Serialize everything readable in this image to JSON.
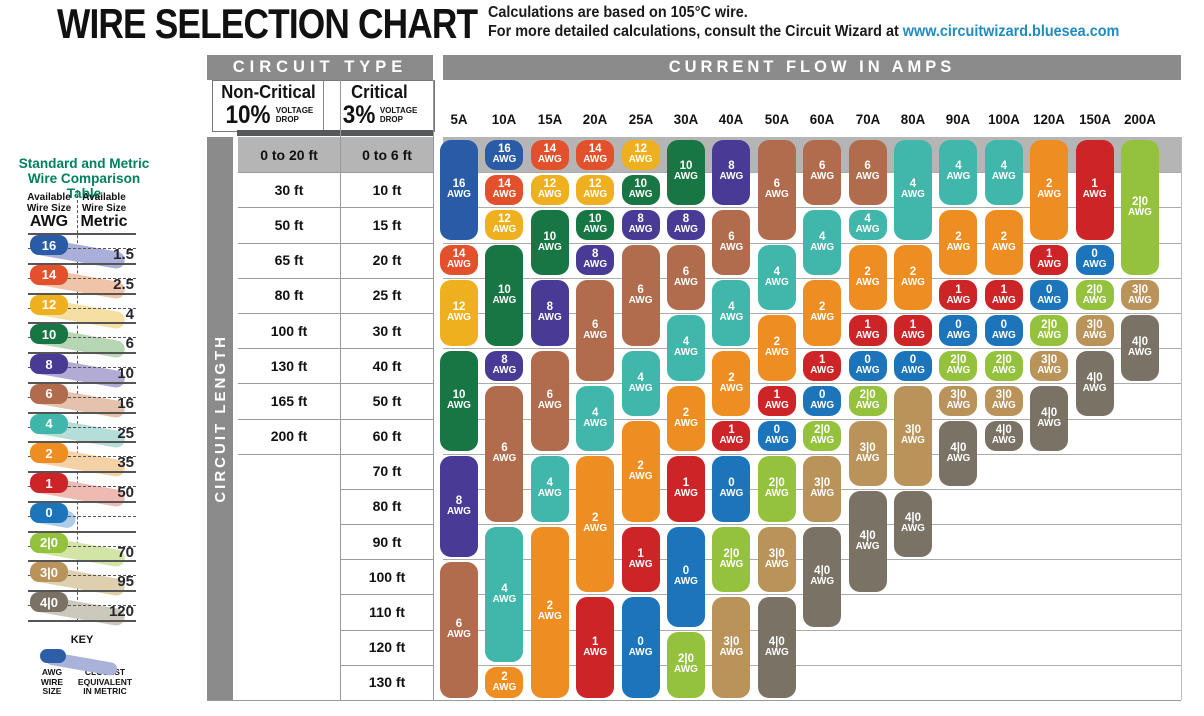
{
  "header": {
    "title": "WIRE SELECTION CHART",
    "note1": "Calculations are based on 105°C wire.",
    "note2": "For more detailed calculations, consult the Circuit Wizard at ",
    "link": "www.circuitwizard.bluesea.com"
  },
  "table": {
    "circuit_type": "CIRCUIT TYPE",
    "current_flow": "CURRENT FLOW IN AMPS",
    "non_critical": "Non-Critical",
    "non_critical_pct": "10%",
    "critical": "Critical",
    "critical_pct": "3%",
    "voltage_l1": "VOLTAGE",
    "voltage_l2": "DROP",
    "circuit_length": "CIRCUIT LENGTH"
  },
  "sidebar": {
    "title_l1": "Standard and Metric",
    "title_l2": "Wire Comparison Table",
    "awg_header_l1": "Available",
    "awg_header_l2": "Wire Size",
    "awg_header_l3": "AWG",
    "metric_header_l1": "Available",
    "metric_header_l2": "Wire Size",
    "metric_header_l3": "Metric",
    "rows": [
      {
        "awg": "16",
        "metric": "1.5",
        "color": "#2a5ba6",
        "tint": "#a9afd9"
      },
      {
        "awg": "14",
        "metric": "2.5",
        "color": "#e2512c",
        "tint": "#f0c4a9"
      },
      {
        "awg": "12",
        "metric": "4",
        "color": "#eeb01f",
        "tint": "#f6dfa3"
      },
      {
        "awg": "10",
        "metric": "6",
        "color": "#177643",
        "tint": "#b7d6b3"
      },
      {
        "awg": "8",
        "metric": "10",
        "color": "#483a95",
        "tint": "#b2abd4"
      },
      {
        "awg": "6",
        "metric": "16",
        "color": "#b06c4c",
        "tint": "#e5c2ad"
      },
      {
        "awg": "4",
        "metric": "25",
        "color": "#41b6aa",
        "tint": "#b4ded7"
      },
      {
        "awg": "2",
        "metric": "35",
        "color": "#ee8d22",
        "tint": "#f5d2a5"
      },
      {
        "awg": "1",
        "metric": "50",
        "color": "#cd2428",
        "tint": "#eebab2"
      },
      {
        "awg": "0",
        "metric": "",
        "color": "#1c74ba",
        "tint": "#aecbe8"
      },
      {
        "awg": "2|0",
        "metric": "70",
        "color": "#94c23c",
        "tint": "#d2e5a7"
      },
      {
        "awg": "3|0",
        "metric": "95",
        "color": "#b9935a",
        "tint": "#ded0ae"
      },
      {
        "awg": "4|0",
        "metric": "120",
        "color": "#7a7264",
        "tint": "#cdc8bc"
      }
    ],
    "key": {
      "label": "KEY",
      "left_l1": "AWG",
      "left_l2": "WIRE",
      "left_l3": "SIZE",
      "right_l1": "CLOSEST",
      "right_l2": "EQUIVALENT",
      "right_l3": "IN METRIC"
    }
  },
  "chart_data": {
    "type": "table",
    "title": "WIRE SELECTION CHART",
    "awg_suffix": "AWG",
    "amps": [
      "5A",
      "10A",
      "15A",
      "20A",
      "25A",
      "30A",
      "40A",
      "50A",
      "60A",
      "70A",
      "80A",
      "90A",
      "100A",
      "120A",
      "150A",
      "200A"
    ],
    "length_rows": [
      {
        "non_critical_10pct": "0 to 20 ft",
        "critical_3pct": "0 to 6 ft"
      },
      {
        "non_critical_10pct": "30 ft",
        "critical_3pct": "10 ft"
      },
      {
        "non_critical_10pct": "50 ft",
        "critical_3pct": "15 ft"
      },
      {
        "non_critical_10pct": "65 ft",
        "critical_3pct": "20 ft"
      },
      {
        "non_critical_10pct": "80 ft",
        "critical_3pct": "25 ft"
      },
      {
        "non_critical_10pct": "100 ft",
        "critical_3pct": "30 ft"
      },
      {
        "non_critical_10pct": "130 ft",
        "critical_3pct": "40 ft"
      },
      {
        "non_critical_10pct": "165 ft",
        "critical_3pct": "50 ft"
      },
      {
        "non_critical_10pct": "200 ft",
        "critical_3pct": "60 ft"
      },
      {
        "non_critical_10pct": "",
        "critical_3pct": "70 ft"
      },
      {
        "non_critical_10pct": "",
        "critical_3pct": "80 ft"
      },
      {
        "non_critical_10pct": "",
        "critical_3pct": "90 ft"
      },
      {
        "non_critical_10pct": "",
        "critical_3pct": "100 ft"
      },
      {
        "non_critical_10pct": "",
        "critical_3pct": "110 ft"
      },
      {
        "non_critical_10pct": "",
        "critical_3pct": "120 ft"
      },
      {
        "non_critical_10pct": "",
        "critical_3pct": "130 ft"
      }
    ],
    "wire_colors": {
      "16": "#2a5ba6",
      "14": "#e2512c",
      "12": "#eeb01f",
      "10": "#177643",
      "8": "#483a95",
      "6": "#b06c4c",
      "4": "#41b6aa",
      "2": "#ee8d22",
      "1": "#cd2428",
      "0": "#1c74ba",
      "2|0": "#94c23c",
      "3|0": "#b9935a",
      "4|0": "#7a7264"
    },
    "columns": [
      {
        "amp": "5A",
        "segments": [
          {
            "awg": "16",
            "from": 1,
            "to": 3
          },
          {
            "awg": "14",
            "from": 4,
            "to": 4
          },
          {
            "awg": "12",
            "from": 5,
            "to": 6
          },
          {
            "awg": "10",
            "from": 7,
            "to": 9
          },
          {
            "awg": "8",
            "from": 10,
            "to": 12
          },
          {
            "awg": "6",
            "from": 13,
            "to": 16
          }
        ]
      },
      {
        "amp": "10A",
        "segments": [
          {
            "awg": "16",
            "from": 1,
            "to": 1
          },
          {
            "awg": "14",
            "from": 2,
            "to": 2
          },
          {
            "awg": "12",
            "from": 3,
            "to": 3
          },
          {
            "awg": "10",
            "from": 4,
            "to": 6
          },
          {
            "awg": "8",
            "from": 7,
            "to": 7
          },
          {
            "awg": "6",
            "from": 8,
            "to": 11
          },
          {
            "awg": "4",
            "from": 12,
            "to": 15
          },
          {
            "awg": "2",
            "from": 16,
            "to": 16
          }
        ]
      },
      {
        "amp": "15A",
        "segments": [
          {
            "awg": "14",
            "from": 1,
            "to": 1
          },
          {
            "awg": "12",
            "from": 2,
            "to": 2
          },
          {
            "awg": "10",
            "from": 3,
            "to": 4
          },
          {
            "awg": "8",
            "from": 5,
            "to": 6
          },
          {
            "awg": "6",
            "from": 7,
            "to": 9
          },
          {
            "awg": "4",
            "from": 10,
            "to": 11
          },
          {
            "awg": "2",
            "from": 12,
            "to": 16
          }
        ]
      },
      {
        "amp": "20A",
        "segments": [
          {
            "awg": "14",
            "from": 1,
            "to": 1
          },
          {
            "awg": "12",
            "from": 2,
            "to": 2
          },
          {
            "awg": "10",
            "from": 3,
            "to": 3
          },
          {
            "awg": "8",
            "from": 4,
            "to": 4
          },
          {
            "awg": "6",
            "from": 5,
            "to": 7
          },
          {
            "awg": "4",
            "from": 8,
            "to": 9
          },
          {
            "awg": "2",
            "from": 10,
            "to": 13
          },
          {
            "awg": "1",
            "from": 14,
            "to": 16
          }
        ]
      },
      {
        "amp": "25A",
        "segments": [
          {
            "awg": "12",
            "from": 1,
            "to": 1
          },
          {
            "awg": "10",
            "from": 2,
            "to": 2
          },
          {
            "awg": "8",
            "from": 3,
            "to": 3
          },
          {
            "awg": "6",
            "from": 4,
            "to": 6
          },
          {
            "awg": "4",
            "from": 7,
            "to": 8
          },
          {
            "awg": "2",
            "from": 9,
            "to": 11
          },
          {
            "awg": "1",
            "from": 12,
            "to": 13
          },
          {
            "awg": "0",
            "from": 14,
            "to": 16
          }
        ]
      },
      {
        "amp": "30A",
        "segments": [
          {
            "awg": "10",
            "from": 1,
            "to": 2
          },
          {
            "awg": "8",
            "from": 3,
            "to": 3
          },
          {
            "awg": "6",
            "from": 4,
            "to": 5
          },
          {
            "awg": "4",
            "from": 6,
            "to": 7
          },
          {
            "awg": "2",
            "from": 8,
            "to": 9
          },
          {
            "awg": "1",
            "from": 10,
            "to": 11
          },
          {
            "awg": "0",
            "from": 12,
            "to": 14
          },
          {
            "awg": "2|0",
            "from": 15,
            "to": 16
          }
        ]
      },
      {
        "amp": "40A",
        "segments": [
          {
            "awg": "8",
            "from": 1,
            "to": 2
          },
          {
            "awg": "6",
            "from": 3,
            "to": 4
          },
          {
            "awg": "4",
            "from": 5,
            "to": 6
          },
          {
            "awg": "2",
            "from": 7,
            "to": 8
          },
          {
            "awg": "1",
            "from": 9,
            "to": 9
          },
          {
            "awg": "0",
            "from": 10,
            "to": 11
          },
          {
            "awg": "2|0",
            "from": 12,
            "to": 13
          },
          {
            "awg": "3|0",
            "from": 14,
            "to": 16
          }
        ]
      },
      {
        "amp": "50A",
        "segments": [
          {
            "awg": "6",
            "from": 1,
            "to": 3
          },
          {
            "awg": "4",
            "from": 4,
            "to": 5
          },
          {
            "awg": "2",
            "from": 6,
            "to": 7
          },
          {
            "awg": "1",
            "from": 8,
            "to": 8
          },
          {
            "awg": "0",
            "from": 9,
            "to": 9
          },
          {
            "awg": "2|0",
            "from": 10,
            "to": 11
          },
          {
            "awg": "3|0",
            "from": 12,
            "to": 13
          },
          {
            "awg": "4|0",
            "from": 14,
            "to": 16
          }
        ]
      },
      {
        "amp": "60A",
        "segments": [
          {
            "awg": "6",
            "from": 1,
            "to": 2
          },
          {
            "awg": "4",
            "from": 3,
            "to": 4
          },
          {
            "awg": "2",
            "from": 5,
            "to": 6
          },
          {
            "awg": "1",
            "from": 7,
            "to": 7
          },
          {
            "awg": "0",
            "from": 8,
            "to": 8
          },
          {
            "awg": "2|0",
            "from": 9,
            "to": 9
          },
          {
            "awg": "3|0",
            "from": 10,
            "to": 11
          },
          {
            "awg": "4|0",
            "from": 12,
            "to": 14
          }
        ]
      },
      {
        "amp": "70A",
        "segments": [
          {
            "awg": "6",
            "from": 1,
            "to": 2
          },
          {
            "awg": "4",
            "from": 3,
            "to": 3
          },
          {
            "awg": "2",
            "from": 4,
            "to": 5
          },
          {
            "awg": "1",
            "from": 6,
            "to": 6
          },
          {
            "awg": "0",
            "from": 7,
            "to": 7
          },
          {
            "awg": "2|0",
            "from": 8,
            "to": 8
          },
          {
            "awg": "3|0",
            "from": 9,
            "to": 10
          },
          {
            "awg": "4|0",
            "from": 11,
            "to": 13
          }
        ]
      },
      {
        "amp": "80A",
        "segments": [
          {
            "awg": "4",
            "from": 1,
            "to": 3
          },
          {
            "awg": "2",
            "from": 4,
            "to": 5
          },
          {
            "awg": "1",
            "from": 6,
            "to": 6
          },
          {
            "awg": "0",
            "from": 7,
            "to": 7
          },
          {
            "awg": "3|0",
            "from": 8,
            "to": 10
          },
          {
            "awg": "4|0",
            "from": 11,
            "to": 12
          }
        ]
      },
      {
        "amp": "90A",
        "segments": [
          {
            "awg": "4",
            "from": 1,
            "to": 2
          },
          {
            "awg": "2",
            "from": 3,
            "to": 4
          },
          {
            "awg": "1",
            "from": 5,
            "to": 5
          },
          {
            "awg": "0",
            "from": 6,
            "to": 6
          },
          {
            "awg": "2|0",
            "from": 7,
            "to": 7
          },
          {
            "awg": "3|0",
            "from": 8,
            "to": 8
          },
          {
            "awg": "4|0",
            "from": 9,
            "to": 10
          }
        ]
      },
      {
        "amp": "100A",
        "segments": [
          {
            "awg": "4",
            "from": 1,
            "to": 2
          },
          {
            "awg": "2",
            "from": 3,
            "to": 4
          },
          {
            "awg": "1",
            "from": 5,
            "to": 5
          },
          {
            "awg": "0",
            "from": 6,
            "to": 6
          },
          {
            "awg": "2|0",
            "from": 7,
            "to": 7
          },
          {
            "awg": "3|0",
            "from": 8,
            "to": 8
          },
          {
            "awg": "4|0",
            "from": 9,
            "to": 9
          }
        ]
      },
      {
        "amp": "120A",
        "segments": [
          {
            "awg": "2",
            "from": 1,
            "to": 3
          },
          {
            "awg": "1",
            "from": 4,
            "to": 4
          },
          {
            "awg": "0",
            "from": 5,
            "to": 5
          },
          {
            "awg": "2|0",
            "from": 6,
            "to": 6
          },
          {
            "awg": "3|0",
            "from": 7,
            "to": 7
          },
          {
            "awg": "4|0",
            "from": 8,
            "to": 9
          }
        ]
      },
      {
        "amp": "150A",
        "segments": [
          {
            "awg": "1",
            "from": 1,
            "to": 3
          },
          {
            "awg": "0",
            "from": 4,
            "to": 4
          },
          {
            "awg": "2|0",
            "from": 5,
            "to": 5
          },
          {
            "awg": "3|0",
            "from": 6,
            "to": 6
          },
          {
            "awg": "4|0",
            "from": 7,
            "to": 8
          }
        ]
      },
      {
        "amp": "200A",
        "segments": [
          {
            "awg": "2|0",
            "from": 1,
            "to": 4
          },
          {
            "awg": "3|0",
            "from": 5,
            "to": 5
          },
          {
            "awg": "4|0",
            "from": 6,
            "to": 7
          }
        ]
      }
    ]
  }
}
